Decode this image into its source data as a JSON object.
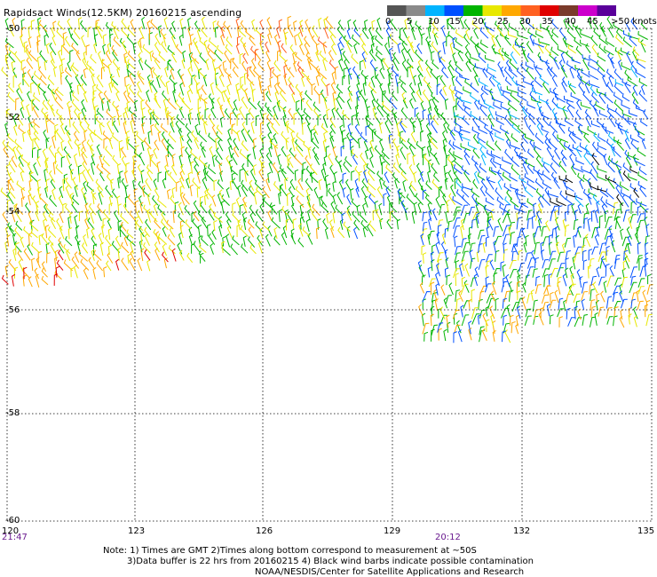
{
  "title": "Rapidsact Winds(12.5KM) 20160215 ascending",
  "color_scale": {
    "labels": [
      "0",
      "5",
      "10",
      "15",
      "20",
      "25",
      "30",
      "35",
      "40",
      "45",
      ">50 knots"
    ],
    "colors": [
      "#555555",
      "#8a8a8a",
      "#00b4ff",
      "#0050ff",
      "#00b400",
      "#e8e800",
      "#ffa800",
      "#ff6020",
      "#e00000",
      "#7a3a2a",
      "#cc00cc",
      "#5a009a"
    ]
  },
  "latitudes": [
    "-50",
    "-52",
    "-54",
    "-56",
    "-58",
    "-60"
  ],
  "longitudes": [
    "120",
    "123",
    "126",
    "129",
    "132",
    "135"
  ],
  "times": [
    "21:47",
    "20:12"
  ],
  "notes": [
    "Note: 1) Times are GMT 2)Times along bottom correspond to measurement at ~50S",
    "3)Data buffer is 22 hrs from 20160215 4) Black wind barbs indicate possible contamination",
    "NOAA/NESDIS/Center for Satellite Applications and Research"
  ]
}
